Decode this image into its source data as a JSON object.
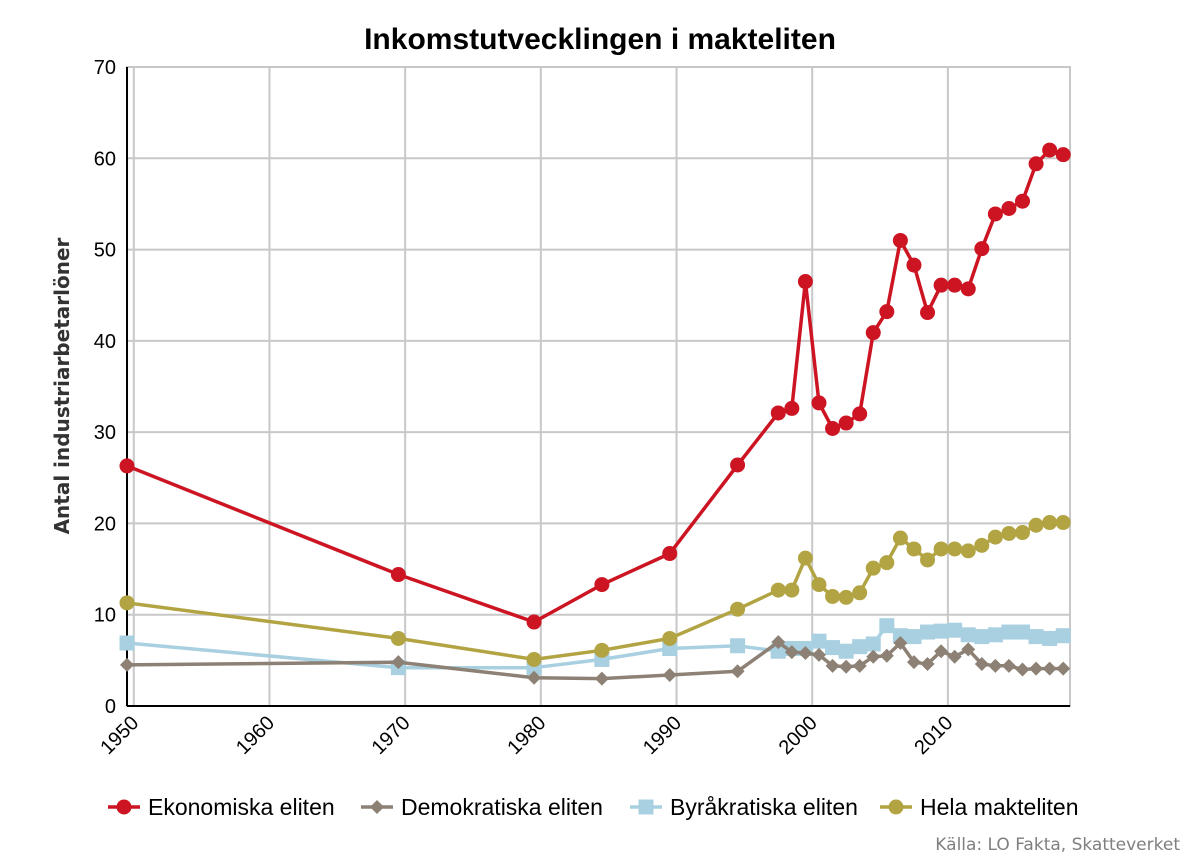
{
  "chart_data": {
    "type": "line",
    "title": "Inkomstutvecklingen i makteliten",
    "xlabel": "",
    "ylabel": "Antal industriarbetarlöner",
    "xlim": [
      1949.5,
      2019
    ],
    "ylim": [
      0,
      70
    ],
    "x_ticks": [
      "1950",
      "1960",
      "1970",
      "1980",
      "1990",
      "2000",
      "2010"
    ],
    "y_ticks": [
      "0",
      "10",
      "20",
      "30",
      "40",
      "50",
      "60",
      "70"
    ],
    "grid": true,
    "legend_position": "bottom",
    "source": "Källa: LO Fakta, Skatteverket",
    "series": [
      {
        "name": "Ekonomiska eliten",
        "color": "#cc1422",
        "marker": "circle",
        "x": [
          1949.5,
          1969.5,
          1979.5,
          1984.5,
          1989.5,
          1994.5,
          1997.5,
          1998.5,
          1999.5,
          2000.5,
          2001.5,
          2002.5,
          2003.5,
          2004.5,
          2005.5,
          2006.5,
          2007.5,
          2008.5,
          2009.5,
          2010.5,
          2011.5,
          2012.5,
          2013.5,
          2014.5,
          2015.5,
          2016.5,
          2017.5,
          2018.5
        ],
        "values": [
          26.3,
          14.4,
          9.2,
          13.3,
          16.7,
          26.4,
          32.1,
          32.6,
          46.5,
          33.2,
          30.4,
          31.0,
          32.0,
          40.9,
          43.2,
          51.0,
          48.3,
          43.1,
          46.1,
          46.1,
          45.7,
          50.1,
          53.9,
          54.5,
          55.3,
          59.4,
          60.9,
          60.4
        ]
      },
      {
        "name": "Demokratiska eliten",
        "color": "#8c8174",
        "marker": "diamond",
        "x": [
          1949.5,
          1969.5,
          1979.5,
          1984.5,
          1989.5,
          1994.5,
          1997.5,
          1998.5,
          1999.5,
          2000.5,
          2001.5,
          2002.5,
          2003.5,
          2004.5,
          2005.5,
          2006.5,
          2007.5,
          2008.5,
          2009.5,
          2010.5,
          2011.5,
          2012.5,
          2013.5,
          2014.5,
          2015.5,
          2016.5,
          2017.5,
          2018.5
        ],
        "values": [
          4.5,
          4.8,
          3.1,
          3.0,
          3.4,
          3.8,
          7.0,
          5.9,
          5.8,
          5.6,
          4.4,
          4.3,
          4.4,
          5.4,
          5.5,
          6.9,
          4.8,
          4.6,
          6.0,
          5.4,
          6.2,
          4.6,
          4.4,
          4.4,
          4.0,
          4.1,
          4.1,
          4.1
        ]
      },
      {
        "name": "Byråkratiska eliten",
        "color": "#a9d0e0",
        "marker": "square",
        "x": [
          1949.5,
          1969.5,
          1979.5,
          1984.5,
          1989.5,
          1994.5,
          1997.5,
          1998.5,
          1999.5,
          2000.5,
          2001.5,
          2002.5,
          2003.5,
          2004.5,
          2005.5,
          2006.5,
          2007.5,
          2008.5,
          2009.5,
          2010.5,
          2011.5,
          2012.5,
          2013.5,
          2014.5,
          2015.5,
          2016.5,
          2017.5,
          2018.5
        ],
        "values": [
          6.9,
          4.2,
          4.2,
          5.1,
          6.3,
          6.6,
          6.0,
          6.3,
          6.3,
          7.1,
          6.4,
          6.0,
          6.5,
          6.8,
          8.8,
          7.7,
          7.6,
          8.1,
          8.2,
          8.3,
          7.8,
          7.6,
          7.8,
          8.1,
          8.1,
          7.6,
          7.4,
          7.7
        ]
      },
      {
        "name": "Hela makteliten",
        "color": "#b2a443",
        "marker": "circle",
        "x": [
          1949.5,
          1969.5,
          1979.5,
          1984.5,
          1989.5,
          1994.5,
          1997.5,
          1998.5,
          1999.5,
          2000.5,
          2001.5,
          2002.5,
          2003.5,
          2004.5,
          2005.5,
          2006.5,
          2007.5,
          2008.5,
          2009.5,
          2010.5,
          2011.5,
          2012.5,
          2013.5,
          2014.5,
          2015.5,
          2016.5,
          2017.5,
          2018.5
        ],
        "values": [
          11.3,
          7.4,
          5.1,
          6.1,
          7.4,
          10.6,
          12.7,
          12.7,
          16.2,
          13.3,
          12.0,
          11.9,
          12.4,
          15.1,
          15.7,
          18.4,
          17.2,
          16.0,
          17.2,
          17.2,
          17.0,
          17.6,
          18.5,
          18.9,
          19.0,
          19.8,
          20.1,
          20.1
        ]
      }
    ]
  }
}
